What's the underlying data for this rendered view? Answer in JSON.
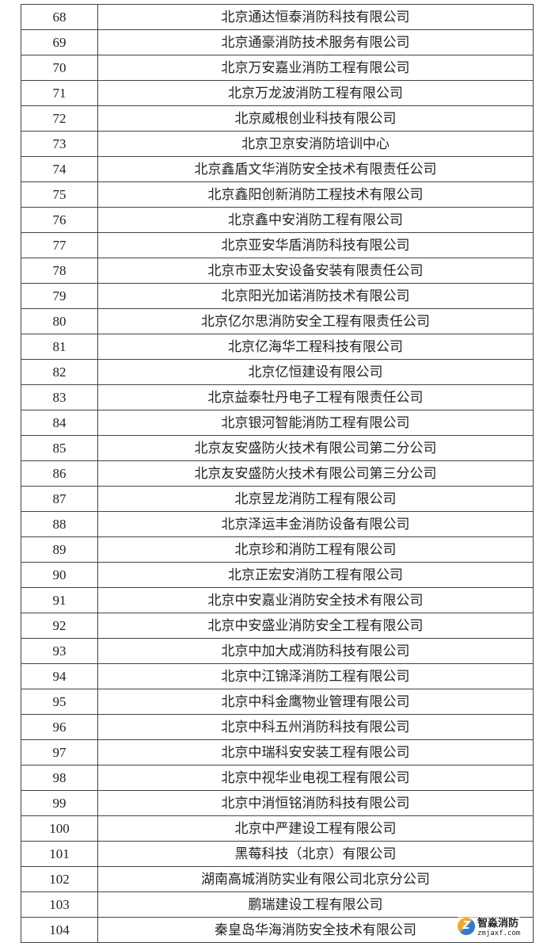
{
  "rows": [
    {
      "no": "68",
      "name": "北京通达恒泰消防科技有限公司"
    },
    {
      "no": "69",
      "name": "北京通豪消防技术服务有限公司"
    },
    {
      "no": "70",
      "name": "北京万安嘉业消防工程有限公司"
    },
    {
      "no": "71",
      "name": "北京万龙波消防工程有限公司"
    },
    {
      "no": "72",
      "name": "北京威根创业科技有限公司"
    },
    {
      "no": "73",
      "name": "北京卫京安消防培训中心"
    },
    {
      "no": "74",
      "name": "北京鑫盾文华消防安全技术有限责任公司"
    },
    {
      "no": "75",
      "name": "北京鑫阳创新消防工程技术有限公司"
    },
    {
      "no": "76",
      "name": "北京鑫中安消防工程有限公司"
    },
    {
      "no": "77",
      "name": "北京亚安华盾消防科技有限公司"
    },
    {
      "no": "78",
      "name": "北京市亚太安设备安装有限责任公司"
    },
    {
      "no": "79",
      "name": "北京阳光加诺消防技术有限公司"
    },
    {
      "no": "80",
      "name": "北京亿尔思消防安全工程有限责任公司"
    },
    {
      "no": "81",
      "name": "北京亿海华工程科技有限公司"
    },
    {
      "no": "82",
      "name": "北京亿恒建设有限公司"
    },
    {
      "no": "83",
      "name": "北京益泰牡丹电子工程有限责任公司"
    },
    {
      "no": "84",
      "name": "北京银河智能消防工程有限公司"
    },
    {
      "no": "85",
      "name": "北京友安盛防火技术有限公司第二分公司"
    },
    {
      "no": "86",
      "name": "北京友安盛防火技术有限公司第三分公司"
    },
    {
      "no": "87",
      "name": "北京昱龙消防工程有限公司"
    },
    {
      "no": "88",
      "name": "北京泽运丰金消防设备有限公司"
    },
    {
      "no": "89",
      "name": "北京珍和消防工程有限公司"
    },
    {
      "no": "90",
      "name": "北京正宏安消防工程有限公司"
    },
    {
      "no": "91",
      "name": "北京中安嘉业消防安全技术有限公司"
    },
    {
      "no": "92",
      "name": "北京中安盛业消防安全工程有限公司"
    },
    {
      "no": "93",
      "name": "北京中加大成消防科技有限公司"
    },
    {
      "no": "94",
      "name": "北京中江锦泽消防工程有限公司"
    },
    {
      "no": "95",
      "name": "北京中科金鹰物业管理有限公司"
    },
    {
      "no": "96",
      "name": "北京中科五州消防科技有限公司"
    },
    {
      "no": "97",
      "name": "北京中瑞科安安装工程有限公司"
    },
    {
      "no": "98",
      "name": "北京中视华业电视工程有限公司"
    },
    {
      "no": "99",
      "name": "北京中消恒铭消防科技有限公司"
    },
    {
      "no": "100",
      "name": "北京中严建设工程有限公司"
    },
    {
      "no": "101",
      "name": "黑莓科技（北京）有限公司"
    },
    {
      "no": "102",
      "name": "湖南高城消防实业有限公司北京分公司"
    },
    {
      "no": "103",
      "name": "鹏瑞建设工程有限公司"
    },
    {
      "no": "104",
      "name": "秦皇岛华海消防安全技术有限公司"
    }
  ],
  "watermark": {
    "name": "智淼消防",
    "url": "zmjaxf.com",
    "logo_letter": "Z"
  }
}
